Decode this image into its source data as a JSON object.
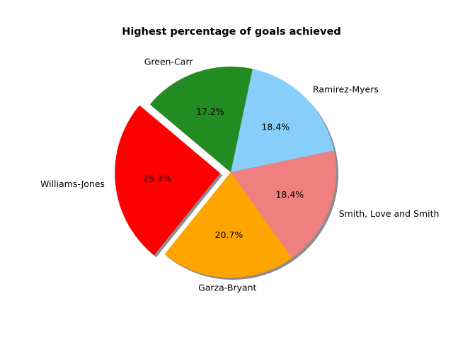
{
  "chart_data": {
    "type": "pie",
    "title": "Highest percentage of goals achieved",
    "start_angle": 140,
    "direction": "counterclockwise",
    "shadow": true,
    "slices": [
      {
        "label": "Williams-Jones",
        "percent": 25.3,
        "percent_label": "25.3%",
        "color": "#ff0000",
        "exploded": true
      },
      {
        "label": "Garza-Bryant",
        "percent": 20.7,
        "percent_label": "20.7%",
        "color": "#ffa500",
        "exploded": false
      },
      {
        "label": "Smith, Love and Smith",
        "percent": 18.4,
        "percent_label": "18.4%",
        "color": "#f08080",
        "exploded": false
      },
      {
        "label": "Ramirez-Myers",
        "percent": 18.4,
        "percent_label": "18.4%",
        "color": "#87cefa",
        "exploded": false
      },
      {
        "label": "Green-Carr",
        "percent": 17.2,
        "percent_label": "17.2%",
        "color": "#228b22",
        "exploded": false
      }
    ]
  }
}
